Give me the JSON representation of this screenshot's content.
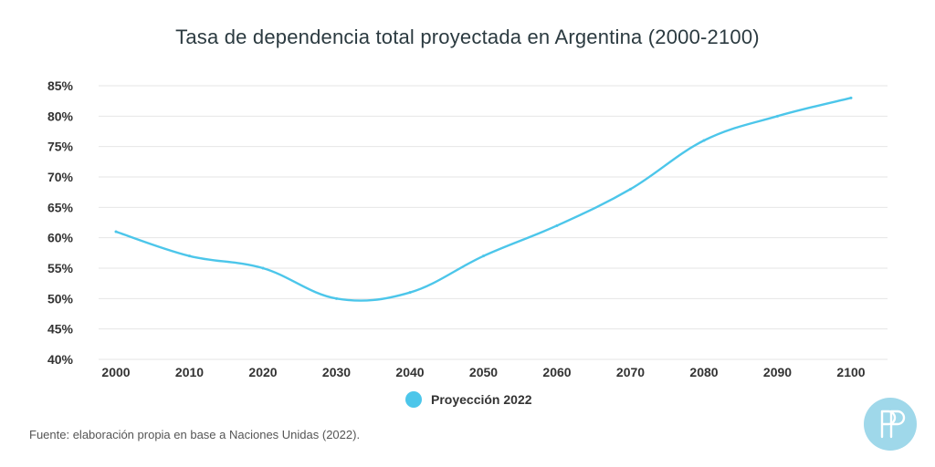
{
  "title": "Tasa de dependencia total proyectada en Argentina (2000-2100)",
  "source": "Fuente: elaboración propia en base a Naciones Unidas (2022).",
  "logo_text": "PP",
  "colors": {
    "series": "#4cc6ea",
    "grid": "#e6e6e6",
    "text": "#333333",
    "logo_bg": "#9fd8ea"
  },
  "chart_data": {
    "type": "line",
    "title": "Tasa de dependencia total proyectada en Argentina (2000-2100)",
    "xlabel": "",
    "ylabel": "",
    "x": [
      2000,
      2010,
      2020,
      2030,
      2040,
      2050,
      2060,
      2070,
      2080,
      2090,
      2100
    ],
    "x_tick_labels": [
      "2000",
      "2010",
      "2020",
      "2030",
      "2040",
      "2050",
      "2060",
      "2070",
      "2080",
      "2090",
      "2100"
    ],
    "y_tick_labels": [
      "40%",
      "45%",
      "50%",
      "55%",
      "60%",
      "65%",
      "70%",
      "75%",
      "80%",
      "85%"
    ],
    "y_ticks": [
      40,
      45,
      50,
      55,
      60,
      65,
      70,
      75,
      80,
      85
    ],
    "ylim": [
      40,
      85
    ],
    "xlim": [
      2000,
      2100
    ],
    "grid": true,
    "legend_position": "bottom-center",
    "series": [
      {
        "name": "Proyección 2022",
        "color": "#4cc6ea",
        "values": [
          61,
          57,
          55,
          50,
          51,
          57,
          62,
          68,
          76,
          80,
          83
        ]
      }
    ]
  }
}
